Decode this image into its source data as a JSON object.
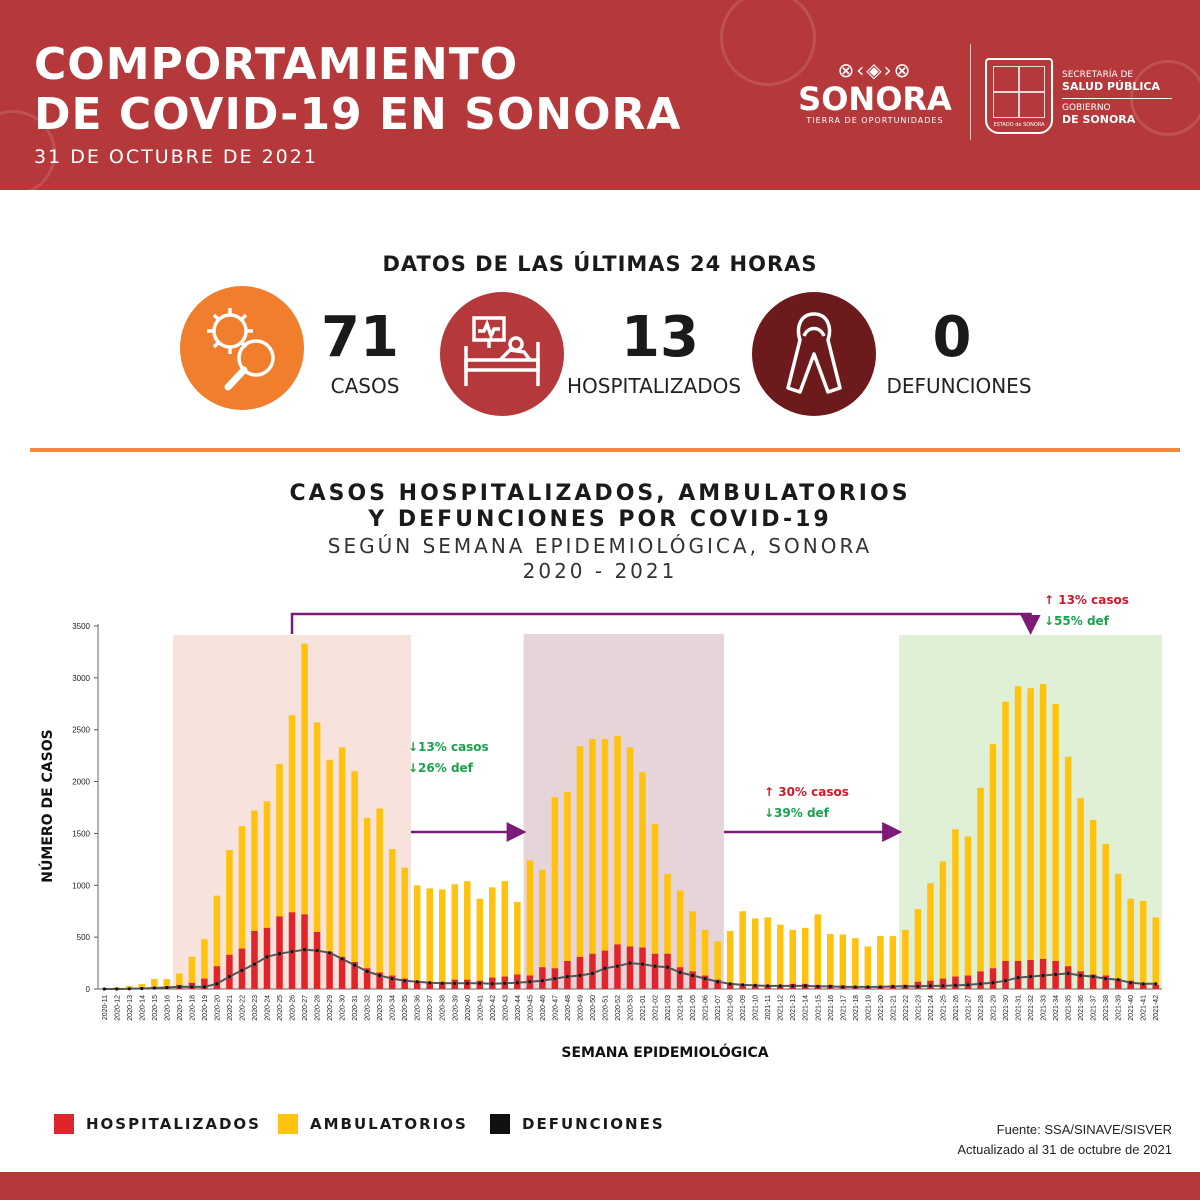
{
  "header": {
    "title_line1": "COMPORTAMIENTO",
    "title_line2": "DE COVID-19 EN SONORA",
    "date": "31 DE OCTUBRE DE 2021",
    "logo_name": "SONORA",
    "logo_tagline": "TIERRA DE OPORTUNIDADES",
    "shield_caption": "ESTADO de SONORA",
    "secretaria": "SECRETARÍA DE",
    "salud": "SALUD PÚBLICA",
    "gobierno": "GOBIERNO",
    "de_sonora": "DE SONORA"
  },
  "stats": {
    "heading": "DATOS DE LAS ÚLTIMAS 24 HORAS",
    "casos": {
      "value": "71",
      "label": "CASOS",
      "icon": "virus-magnifier-icon",
      "color": "#f07e2c"
    },
    "hospitalizados": {
      "value": "13",
      "label": "HOSPITALIZADOS",
      "icon": "hospital-bed-icon",
      "color": "#b5393b"
    },
    "defunciones": {
      "value": "0",
      "label": "DEFUNCIONES",
      "icon": "ribbon-icon",
      "color": "#6d1a1d"
    }
  },
  "colors": {
    "brand": "#b5393b",
    "accent": "#f08a3c",
    "hosp": "#e0252a",
    "amb": "#ffc20e",
    "def": "#111111"
  },
  "chart_data": {
    "type": "bar",
    "title": "CASOS HOSPITALIZADOS, AMBULATORIOS\nY DEFUNCIONES POR COVID-19",
    "subtitle": "SEGÚN SEMANA EPIDEMIOLÓGICA, SONORA",
    "subtitle2": "2020 - 2021",
    "xlabel": "SEMANA EPIDEMIOLÓGICA",
    "ylabel": "NÚMERO DE CASOS",
    "ylim": [
      0,
      3500
    ],
    "yticks": [
      0,
      500,
      1000,
      1500,
      2000,
      2500,
      3000,
      3500
    ],
    "categories": [
      "2020-11",
      "2020-12",
      "2020-13",
      "2020-14",
      "2020-15",
      "2020-16",
      "2020-17",
      "2020-18",
      "2020-19",
      "2020-20",
      "2020-21",
      "2020-22",
      "2020-23",
      "2020-24",
      "2020-25",
      "2020-26",
      "2020-27",
      "2020-28",
      "2020-29",
      "2020-30",
      "2020-31",
      "2020-32",
      "2020-33",
      "2020-34",
      "2020-35",
      "2020-36",
      "2020-37",
      "2020-38",
      "2020-39",
      "2020-40",
      "2020-41",
      "2020-42",
      "2020-43",
      "2020-44",
      "2020-45",
      "2020-46",
      "2020-47",
      "2020-48",
      "2020-49",
      "2020-50",
      "2020-51",
      "2020-52",
      "2020-53",
      "2021-01",
      "2021-02",
      "2021-03",
      "2021-04",
      "2021-05",
      "2021-06",
      "2021-07",
      "2021-08",
      "2021-09",
      "2021-10",
      "2021-11",
      "2021-12",
      "2021-13",
      "2021-14",
      "2021-15",
      "2021-16",
      "2021-17",
      "2021-18",
      "2021-19",
      "2021-20",
      "2021-21",
      "2021-22",
      "2021-23",
      "2021-24",
      "2021-25",
      "2021-26",
      "2021-27",
      "2021-28",
      "2021-29",
      "2021-30",
      "2021-31",
      "2021-32",
      "2021-33",
      "2021-34",
      "2021-35",
      "2021-36",
      "2021-37",
      "2021-38",
      "2021-39",
      "2021-40",
      "2021-41",
      "2021-42"
    ],
    "series": [
      {
        "name": "HOSPITALIZADOS",
        "color": "#e0252a",
        "values": [
          2,
          3,
          5,
          8,
          12,
          15,
          40,
          60,
          100,
          220,
          330,
          390,
          560,
          590,
          700,
          740,
          720,
          550,
          360,
          310,
          260,
          200,
          160,
          130,
          100,
          80,
          70,
          70,
          90,
          90,
          80,
          110,
          120,
          140,
          130,
          210,
          200,
          270,
          310,
          340,
          370,
          430,
          410,
          400,
          340,
          340,
          210,
          170,
          130,
          90,
          60,
          50,
          40,
          40,
          40,
          50,
          50,
          40,
          40,
          35,
          30,
          30,
          30,
          30,
          40,
          70,
          80,
          100,
          120,
          130,
          170,
          200,
          270,
          270,
          280,
          290,
          270,
          220,
          170,
          140,
          130,
          100,
          80,
          50,
          40
        ]
      },
      {
        "name": "AMBULATORIOS",
        "color": "#ffc20e",
        "values": [
          8,
          14,
          25,
          40,
          85,
          80,
          110,
          250,
          380,
          680,
          1010,
          1180,
          1160,
          1220,
          1470,
          1900,
          2610,
          2020,
          1850,
          2020,
          1840,
          1450,
          1580,
          1220,
          1070,
          920,
          900,
          890,
          920,
          950,
          790,
          870,
          920,
          700,
          1110,
          940,
          1650,
          1630,
          2030,
          2070,
          2040,
          2010,
          1920,
          1690,
          1250,
          770,
          740,
          580,
          440,
          370,
          500,
          700,
          640,
          650,
          580,
          520,
          540,
          680,
          490,
          490,
          460,
          380,
          480,
          480,
          530,
          700,
          940,
          1130,
          1420,
          1340,
          1770,
          2160,
          2500,
          2650,
          2620,
          2650,
          2480,
          2020,
          1670,
          1490,
          1270,
          1010,
          790,
          800,
          650
        ]
      },
      {
        "name": "DEFUNCIONES",
        "color": "#111111",
        "values": [
          0,
          0,
          2,
          5,
          10,
          15,
          20,
          20,
          20,
          50,
          120,
          180,
          240,
          310,
          340,
          360,
          380,
          370,
          350,
          290,
          230,
          170,
          130,
          100,
          80,
          70,
          60,
          55,
          55,
          55,
          55,
          50,
          55,
          60,
          70,
          80,
          100,
          120,
          130,
          150,
          200,
          220,
          250,
          240,
          220,
          210,
          160,
          130,
          100,
          70,
          50,
          40,
          35,
          30,
          30,
          30,
          30,
          25,
          25,
          20,
          20,
          20,
          20,
          25,
          25,
          25,
          30,
          30,
          35,
          40,
          50,
          60,
          80,
          110,
          120,
          130,
          140,
          150,
          130,
          120,
          100,
          90,
          60,
          50,
          50
        ]
      }
    ],
    "periods": [
      {
        "from": "2020-17",
        "to": "2020-35",
        "color": "#f8e2dc"
      },
      {
        "from": "2020-45",
        "to": "2021-07",
        "color": "#e6d4d8"
      },
      {
        "from": "2021-22",
        "to": "2021-42",
        "color": "#e0f0d6"
      }
    ],
    "annotations": {
      "a1_casos": "13% casos",
      "a1_def": "26% def",
      "a2_casos": "30% casos",
      "a2_def": "39% def",
      "a3_casos": "13% casos",
      "a3_def": "55% def"
    },
    "legend": [
      "HOSPITALIZADOS",
      "AMBULATORIOS",
      "DEFUNCIONES"
    ],
    "legend_position": "bottom-left"
  },
  "footer": {
    "source": "Fuente: SSA/SINAVE/SISVER",
    "updated": "Actualizado al 31 de octubre de 2021"
  }
}
